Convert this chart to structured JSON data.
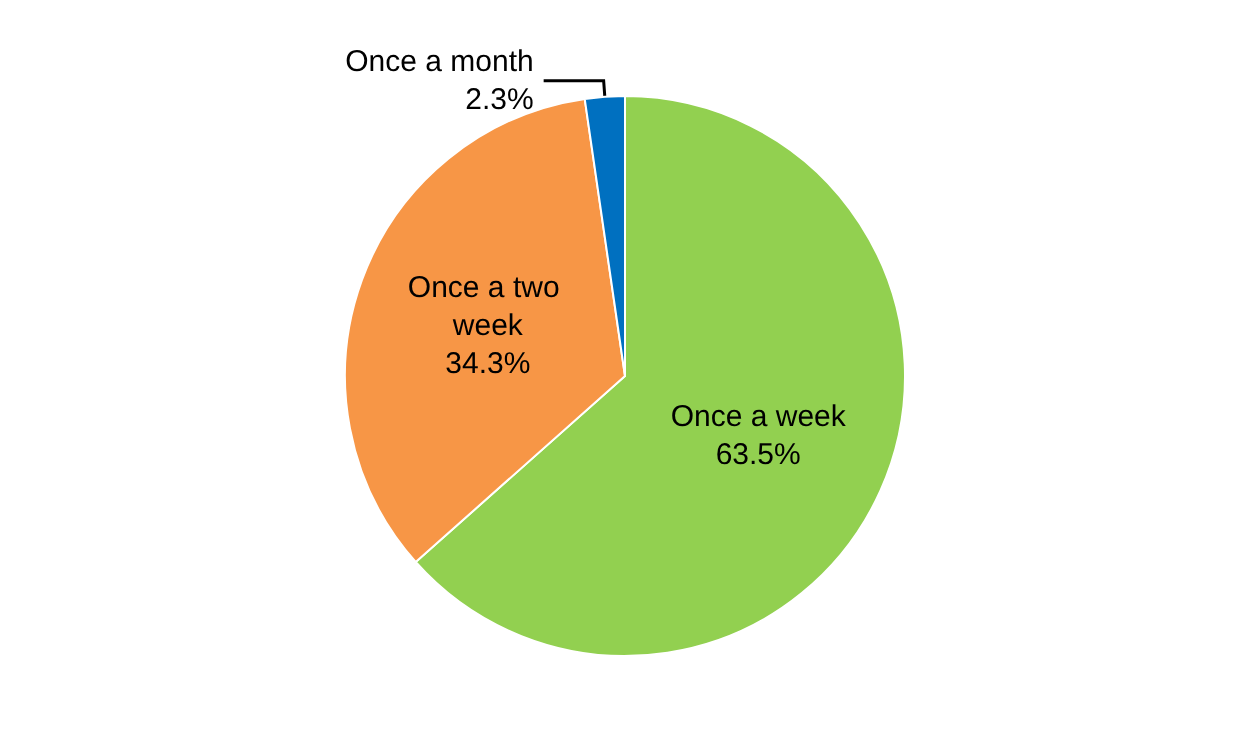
{
  "chart_data": {
    "type": "pie",
    "categories": [
      "Once a week",
      "Once a two week",
      "Once a month"
    ],
    "values": [
      63.5,
      34.3,
      2.3
    ],
    "value_labels": [
      "63.5%",
      "34.3%",
      "2.3%"
    ],
    "colors": [
      "#92d050",
      "#f79646",
      "#0070c0"
    ]
  }
}
